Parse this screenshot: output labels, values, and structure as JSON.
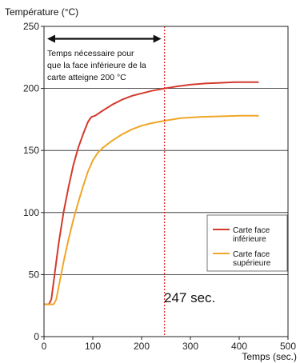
{
  "chart_data": {
    "type": "line",
    "ylabel": "Température (°C)",
    "xlabel": "Temps (sec.)",
    "xlim": [
      0,
      500
    ],
    "ylim": [
      0,
      250
    ],
    "xticks": [
      0,
      100,
      200,
      300,
      400,
      500
    ],
    "yticks": [
      0,
      50,
      100,
      150,
      200,
      250
    ],
    "grid": "horizontal",
    "legend_position": "right-middle",
    "series": [
      {
        "name": "Carte face inférieure",
        "color": "#d23a2c",
        "legend_lines": [
          "Carte face",
          "inférieure"
        ],
        "points": [
          [
            0,
            26
          ],
          [
            10,
            26
          ],
          [
            15,
            30
          ],
          [
            20,
            45
          ],
          [
            30,
            75
          ],
          [
            40,
            100
          ],
          [
            50,
            120
          ],
          [
            60,
            138
          ],
          [
            70,
            152
          ],
          [
            80,
            163
          ],
          [
            90,
            173
          ],
          [
            97,
            177
          ],
          [
            105,
            178
          ],
          [
            120,
            182
          ],
          [
            140,
            187
          ],
          [
            160,
            191
          ],
          [
            180,
            194
          ],
          [
            200,
            196
          ],
          [
            220,
            198
          ],
          [
            247,
            200
          ],
          [
            270,
            201.5
          ],
          [
            300,
            203
          ],
          [
            330,
            204
          ],
          [
            360,
            204.5
          ],
          [
            390,
            205
          ],
          [
            420,
            205
          ],
          [
            440,
            205
          ]
        ]
      },
      {
        "name": "Carte face supérieure",
        "color": "#f0a628",
        "legend_lines": [
          "Carte face",
          "supérieure"
        ],
        "points": [
          [
            0,
            26
          ],
          [
            20,
            26
          ],
          [
            25,
            30
          ],
          [
            30,
            40
          ],
          [
            40,
            60
          ],
          [
            50,
            78
          ],
          [
            60,
            94
          ],
          [
            70,
            108
          ],
          [
            80,
            121
          ],
          [
            90,
            133
          ],
          [
            100,
            142
          ],
          [
            110,
            148
          ],
          [
            120,
            152
          ],
          [
            140,
            158
          ],
          [
            160,
            163
          ],
          [
            180,
            167
          ],
          [
            200,
            170
          ],
          [
            220,
            172
          ],
          [
            247,
            174
          ],
          [
            280,
            176
          ],
          [
            320,
            177
          ],
          [
            360,
            177.5
          ],
          [
            400,
            178
          ],
          [
            440,
            178
          ]
        ]
      }
    ],
    "annotations": {
      "arrow": {
        "x_start": 0,
        "x_end": 247,
        "y": 240
      },
      "arrow_text": [
        "Temps nécessaire pour",
        "que la face inférieure de la",
        "carte atteigne 200 °C"
      ],
      "vline": {
        "x": 247,
        "color": "#e02020",
        "style": "dotted"
      },
      "vline_label": "247 sec."
    }
  }
}
